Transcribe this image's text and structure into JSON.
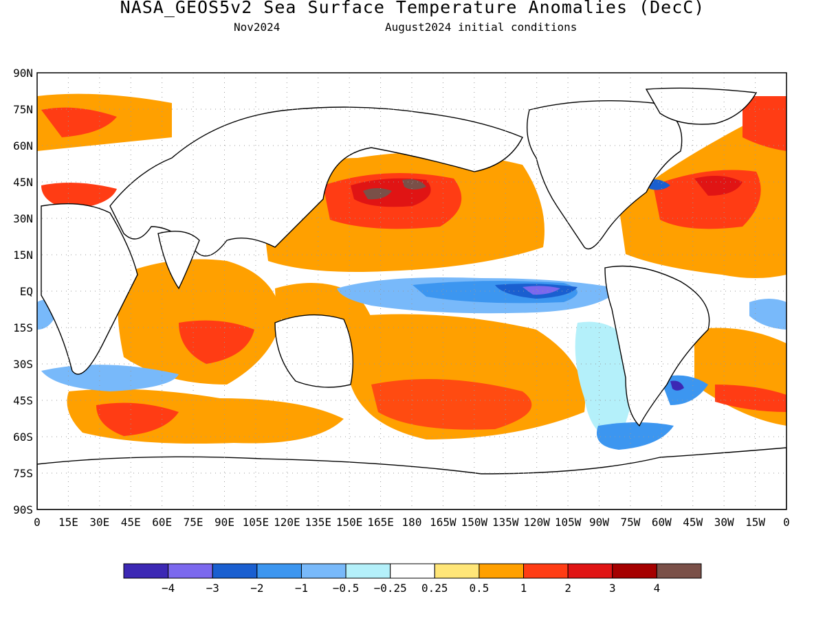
{
  "title": "NASA_GEOS5v2 Sea Surface Temperature Anomalies (DecC)",
  "subtitle_left": "Nov2024",
  "subtitle_right": "August2024 initial conditions",
  "lat_labels": [
    "90N",
    "75N",
    "60N",
    "45N",
    "30N",
    "15N",
    "EQ",
    "15S",
    "30S",
    "45S",
    "60S",
    "75S",
    "90S"
  ],
  "lon_labels": [
    "0",
    "15E",
    "30E",
    "45E",
    "60E",
    "75E",
    "90E",
    "105E",
    "120E",
    "135E",
    "150E",
    "165E",
    "180",
    "165W",
    "150W",
    "135W",
    "120W",
    "105W",
    "90W",
    "75W",
    "60W",
    "45W",
    "30W",
    "15W",
    "0"
  ],
  "colorbar": {
    "colors": [
      "#3c28b4",
      "#7b68ee",
      "#1a5fd0",
      "#3c96f0",
      "#78b9fa",
      "#b4f0fa",
      "#ffffff",
      "#ffe678",
      "#ffa000",
      "#ff3c14",
      "#e01414",
      "#a50000",
      "#7a5048"
    ],
    "labels": [
      "−4",
      "−3",
      "−2",
      "−1",
      "−0.5",
      "−0.25",
      "0.25",
      "0.5",
      "1",
      "2",
      "3",
      "4"
    ]
  }
}
